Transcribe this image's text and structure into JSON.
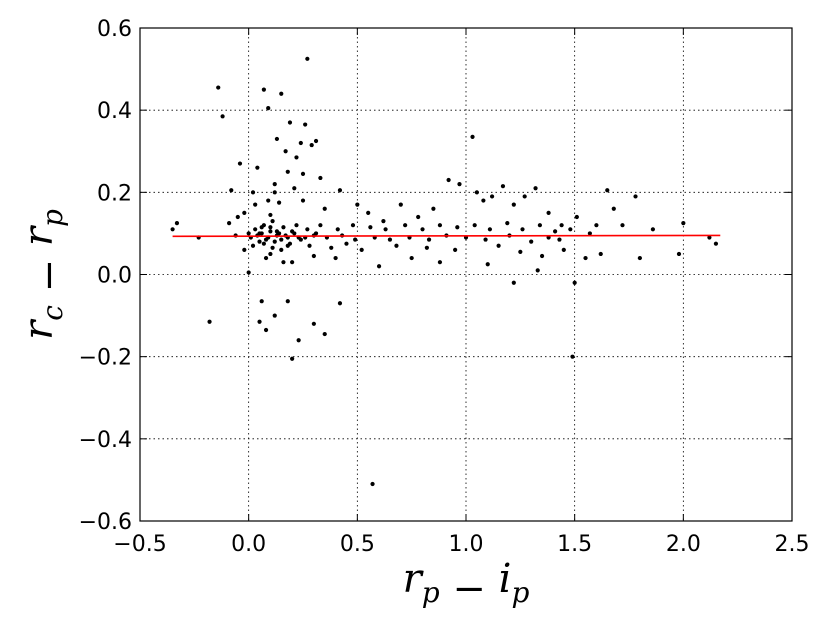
{
  "chart_data": {
    "type": "scatter",
    "title": "",
    "xlabel": "r_p - i_p",
    "ylabel": "r_c - r_p",
    "xlim": [
      -0.5,
      2.5
    ],
    "ylim": [
      -0.6,
      0.6
    ],
    "xticks": [
      -0.5,
      0.0,
      0.5,
      1.0,
      1.5,
      2.0,
      2.5
    ],
    "yticks": [
      -0.6,
      -0.4,
      -0.2,
      0.0,
      0.2,
      0.4,
      0.6
    ],
    "xtick_labels": [
      "−0.5",
      "0.0",
      "0.5",
      "1.0",
      "1.5",
      "2.0",
      "2.5"
    ],
    "ytick_labels": [
      "−0.6",
      "−0.4",
      "−0.2",
      "0.0",
      "0.2",
      "0.4",
      "0.6"
    ],
    "grid": true,
    "fit_line": {
      "x": [
        -0.35,
        2.17
      ],
      "y": [
        0.093,
        0.095
      ],
      "color": "#ff0000"
    },
    "marker_color": "#000000",
    "series": [
      {
        "points": [
          [
            -0.35,
            0.11
          ],
          [
            -0.33,
            0.125
          ],
          [
            -0.18,
            -0.115
          ],
          [
            -0.14,
            0.455
          ],
          [
            -0.12,
            0.385
          ],
          [
            -0.09,
            0.125
          ],
          [
            -0.08,
            0.205
          ],
          [
            -0.06,
            0.095
          ],
          [
            -0.04,
            0.27
          ],
          [
            -0.02,
            0.06
          ],
          [
            0.0,
            0.005
          ],
          [
            0.02,
            0.2
          ],
          [
            0.04,
            0.26
          ],
          [
            0.06,
            0.115
          ],
          [
            0.08,
            0.04
          ],
          [
            0.1,
            0.145
          ],
          [
            0.12,
            0.22
          ],
          [
            0.14,
            0.175
          ],
          [
            0.16,
            0.03
          ],
          [
            0.18,
            0.25
          ],
          [
            0.05,
            -0.115
          ],
          [
            0.06,
            -0.065
          ],
          [
            0.08,
            -0.135
          ],
          [
            0.12,
            -0.1
          ],
          [
            0.18,
            -0.065
          ],
          [
            0.2,
            -0.205
          ],
          [
            0.23,
            -0.16
          ],
          [
            0.3,
            -0.12
          ],
          [
            0.35,
            -0.145
          ],
          [
            0.42,
            -0.07
          ],
          [
            0.57,
            -0.51
          ],
          [
            1.49,
            -0.2
          ],
          [
            0.07,
            0.45
          ],
          [
            0.09,
            0.405
          ],
          [
            0.13,
            0.33
          ],
          [
            0.15,
            0.44
          ],
          [
            0.17,
            0.3
          ],
          [
            0.19,
            0.37
          ],
          [
            0.22,
            0.285
          ],
          [
            0.24,
            0.32
          ],
          [
            0.26,
            0.365
          ],
          [
            0.27,
            0.525
          ],
          [
            0.29,
            0.315
          ],
          [
            0.31,
            0.325
          ],
          [
            0.33,
            0.235
          ],
          [
            0.25,
            0.245
          ],
          [
            0.21,
            0.21
          ],
          [
            0.12,
            0.2
          ],
          [
            0.03,
            0.17
          ],
          [
            0.09,
            0.18
          ],
          [
            0.25,
            0.18
          ],
          [
            0.35,
            0.16
          ],
          [
            0.42,
            0.205
          ],
          [
            0.5,
            0.17
          ],
          [
            0.55,
            0.15
          ],
          [
            0.62,
            0.13
          ],
          [
            0.7,
            0.17
          ],
          [
            0.78,
            0.14
          ],
          [
            0.85,
            0.16
          ],
          [
            0.92,
            0.23
          ],
          [
            0.97,
            0.22
          ],
          [
            1.03,
            0.335
          ],
          [
            1.05,
            0.2
          ],
          [
            1.08,
            0.18
          ],
          [
            1.12,
            0.19
          ],
          [
            1.17,
            0.215
          ],
          [
            1.22,
            0.17
          ],
          [
            1.27,
            0.19
          ],
          [
            1.32,
            0.21
          ],
          [
            1.38,
            0.15
          ],
          [
            1.44,
            0.12
          ],
          [
            1.51,
            0.14
          ],
          [
            1.57,
            0.1
          ],
          [
            1.6,
            0.12
          ],
          [
            1.65,
            0.205
          ],
          [
            1.68,
            0.16
          ],
          [
            1.72,
            0.12
          ],
          [
            1.78,
            0.19
          ],
          [
            1.8,
            0.04
          ],
          [
            1.86,
            0.11
          ],
          [
            1.98,
            0.05
          ],
          [
            2.0,
            0.125
          ],
          [
            2.12,
            0.09
          ],
          [
            2.15,
            0.075
          ],
          [
            1.5,
            -0.02
          ],
          [
            1.33,
            0.01
          ],
          [
            1.22,
            -0.02
          ],
          [
            0.6,
            0.02
          ],
          [
            0.75,
            0.04
          ],
          [
            0.88,
            0.03
          ],
          [
            1.1,
            0.025
          ],
          [
            0.4,
            0.04
          ],
          [
            0.3,
            0.045
          ],
          [
            0.2,
            0.03
          ],
          [
            0.1,
            0.05
          ],
          [
            0.15,
            0.06
          ],
          [
            0.0,
            0.1
          ],
          [
            -0.02,
            0.15
          ],
          [
            -0.05,
            0.14
          ],
          [
            -0.23,
            0.09
          ],
          [
            1.55,
            0.04
          ],
          [
            1.62,
            0.05
          ],
          [
            1.45,
            0.06
          ],
          [
            1.35,
            0.045
          ],
          [
            1.25,
            0.055
          ],
          [
            1.15,
            0.07
          ],
          [
            0.95,
            0.06
          ],
          [
            0.82,
            0.065
          ],
          [
            0.68,
            0.07
          ],
          [
            0.52,
            0.06
          ],
          [
            0.45,
            0.075
          ],
          [
            0.38,
            0.065
          ],
          [
            0.28,
            0.07
          ],
          [
            0.19,
            0.075
          ],
          [
            0.11,
            0.065
          ],
          [
            0.05,
            0.08
          ],
          [
            0.01,
            0.09
          ],
          [
            0.03,
            0.11
          ],
          [
            0.07,
            0.12
          ],
          [
            0.11,
            0.13
          ],
          [
            0.16,
            0.115
          ],
          [
            0.22,
            0.12
          ],
          [
            0.27,
            0.11
          ],
          [
            0.33,
            0.12
          ],
          [
            0.41,
            0.11
          ],
          [
            0.48,
            0.12
          ],
          [
            0.56,
            0.115
          ],
          [
            0.63,
            0.11
          ],
          [
            0.72,
            0.12
          ],
          [
            0.8,
            0.11
          ],
          [
            0.88,
            0.12
          ],
          [
            0.96,
            0.115
          ],
          [
            1.04,
            0.12
          ],
          [
            1.11,
            0.11
          ],
          [
            1.19,
            0.125
          ],
          [
            1.26,
            0.11
          ],
          [
            1.34,
            0.12
          ],
          [
            1.41,
            0.105
          ],
          [
            1.48,
            0.11
          ],
          [
            1.3,
            0.08
          ],
          [
            1.2,
            0.095
          ],
          [
            1.09,
            0.085
          ],
          [
            1.0,
            0.09
          ],
          [
            0.91,
            0.095
          ],
          [
            0.83,
            0.085
          ],
          [
            0.74,
            0.09
          ],
          [
            0.65,
            0.085
          ],
          [
            0.58,
            0.09
          ],
          [
            0.49,
            0.085
          ],
          [
            0.43,
            0.095
          ],
          [
            0.36,
            0.09
          ],
          [
            0.3,
            0.095
          ],
          [
            0.24,
            0.085
          ],
          [
            0.18,
            0.09
          ],
          [
            0.13,
            0.095
          ],
          [
            0.08,
            0.085
          ],
          [
            0.04,
            0.095
          ],
          [
            0.02,
            0.07
          ],
          [
            0.06,
            0.1
          ],
          [
            0.1,
            0.105
          ],
          [
            0.14,
            0.1
          ],
          [
            0.17,
            0.095
          ],
          [
            0.21,
            0.1
          ],
          [
            0.26,
            0.09
          ],
          [
            0.31,
            0.1
          ],
          [
            1.38,
            0.09
          ],
          [
            1.43,
            0.085
          ],
          [
            0.09,
            0.09
          ],
          [
            0.12,
            0.08
          ],
          [
            0.05,
            0.1
          ],
          [
            0.15,
            0.085
          ],
          [
            0.2,
            0.105
          ],
          [
            0.23,
            0.09
          ],
          [
            0.07,
            0.075
          ],
          [
            0.1,
            0.115
          ],
          [
            0.13,
            0.105
          ],
          [
            0.18,
            0.07
          ]
        ]
      }
    ]
  }
}
